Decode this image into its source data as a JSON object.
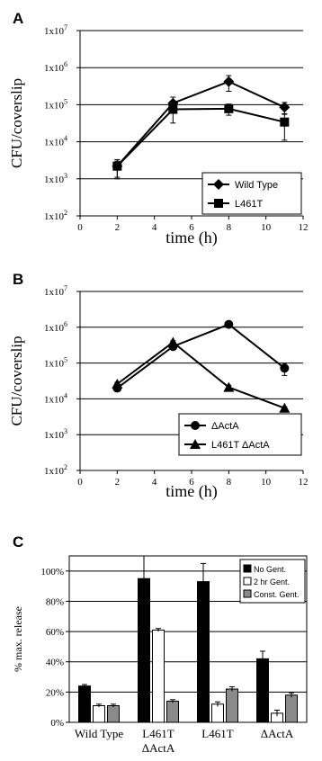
{
  "chart_data": [
    {
      "panel": "A",
      "type": "line",
      "xlabel": "time (h)",
      "ylabel": "CFU/coverslip",
      "xlim": [
        0,
        12
      ],
      "ylim": [
        100,
        10000000
      ],
      "yscale": "log",
      "grid": "horizontal",
      "legend_position": "bottom-right",
      "x_ticks": [
        "0",
        "2",
        "4",
        "6",
        "8",
        "10",
        "12"
      ],
      "y_ticks": [
        "1x10",
        "1x10",
        "1x10",
        "1x10",
        "1x10",
        "1x10"
      ],
      "y_tick_exponents": [
        "2",
        "3",
        "4",
        "5",
        "6",
        "7"
      ],
      "series": [
        {
          "name": "Wild Type",
          "marker": "diamond",
          "x": [
            2,
            5,
            8,
            11
          ],
          "y": [
            2200,
            110000,
            420000,
            85000
          ],
          "err_low": [
            1100,
            60000,
            230000,
            55000
          ],
          "err_high": [
            3300,
            160000,
            610000,
            115000
          ]
        },
        {
          "name": "L461T",
          "marker": "square",
          "x": [
            2,
            5,
            8,
            11
          ],
          "y": [
            2200,
            75000,
            78000,
            34000
          ],
          "err_low": [
            1000,
            32000,
            52000,
            11000
          ],
          "err_high": [
            3000,
            118000,
            104000,
            57000
          ]
        }
      ]
    },
    {
      "panel": "B",
      "type": "line",
      "xlabel": "time (h)",
      "ylabel": "CFU/coverslip",
      "xlim": [
        0,
        12
      ],
      "ylim": [
        100,
        10000000
      ],
      "yscale": "log",
      "grid": "horizontal",
      "legend_position": "bottom-right",
      "x_ticks": [
        "0",
        "2",
        "4",
        "6",
        "8",
        "10",
        "12"
      ],
      "y_ticks": [
        "1x10",
        "1x10",
        "1x10",
        "1x10",
        "1x10",
        "1x10"
      ],
      "y_tick_exponents": [
        "2",
        "3",
        "4",
        "5",
        "6",
        "7"
      ],
      "series": [
        {
          "name": "ΔActA",
          "marker": "circle",
          "x": [
            2,
            5,
            8,
            11
          ],
          "y": [
            20000,
            290000,
            1200000,
            72000
          ],
          "err_low": [
            17000,
            250000,
            1100000,
            45000
          ],
          "err_high": [
            23000,
            330000,
            1300000,
            99000
          ]
        },
        {
          "name": "L461T ΔActA",
          "marker": "triangle",
          "x": [
            2,
            5,
            8,
            11
          ],
          "y": [
            26000,
            380000,
            21000,
            5500
          ],
          "err_low": [
            23000,
            340000,
            18000,
            5000
          ],
          "err_high": [
            29000,
            420000,
            24000,
            6000
          ]
        }
      ]
    },
    {
      "panel": "C",
      "type": "bar",
      "ylabel": "% max. release",
      "ylim": [
        0,
        110
      ],
      "grid": "horizontal",
      "legend_position": "top-right",
      "y_ticks": [
        "0%",
        "20%",
        "40%",
        "60%",
        "80%",
        "100%"
      ],
      "categories": [
        {
          "line1": "Wild Type",
          "line2": ""
        },
        {
          "line1": "L461T",
          "line2": "ΔActA"
        },
        {
          "line1": "L461T",
          "line2": ""
        },
        {
          "line1": "ΔActA",
          "line2": ""
        }
      ],
      "series": [
        {
          "name": "No Gent.",
          "color": "#000000",
          "values": [
            24,
            95,
            93,
            42
          ],
          "err": [
            1,
            15,
            12,
            5
          ]
        },
        {
          "name": "2 hr Gent.",
          "color": "#ffffff",
          "values": [
            11,
            61,
            12,
            6
          ],
          "err": [
            1,
            1,
            1.5,
            2
          ]
        },
        {
          "name": "Const. Gent.",
          "color": "#8a8a8a",
          "values": [
            11,
            14,
            22,
            18
          ],
          "err": [
            1,
            1,
            1.5,
            1.5
          ]
        }
      ]
    }
  ]
}
